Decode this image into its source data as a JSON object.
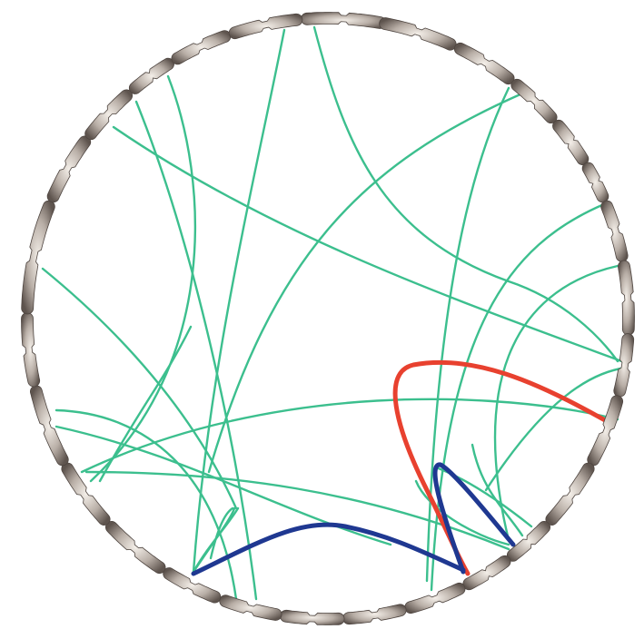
{
  "diagram": {
    "type": "circos-chromosome-links",
    "chromosome_fill": "#8a8079",
    "chromosome_highlight": "#f2eeea",
    "chromosome_outline": "#4e4540",
    "chromosome_count": 24,
    "link_colors": {
      "inter_chromosomal": "#3cbf8e",
      "highlight_primary": "#e8412f",
      "highlight_secondary": "#1f3891"
    },
    "link_count": {
      "green": 22,
      "red": 1,
      "blue": 2
    }
  }
}
